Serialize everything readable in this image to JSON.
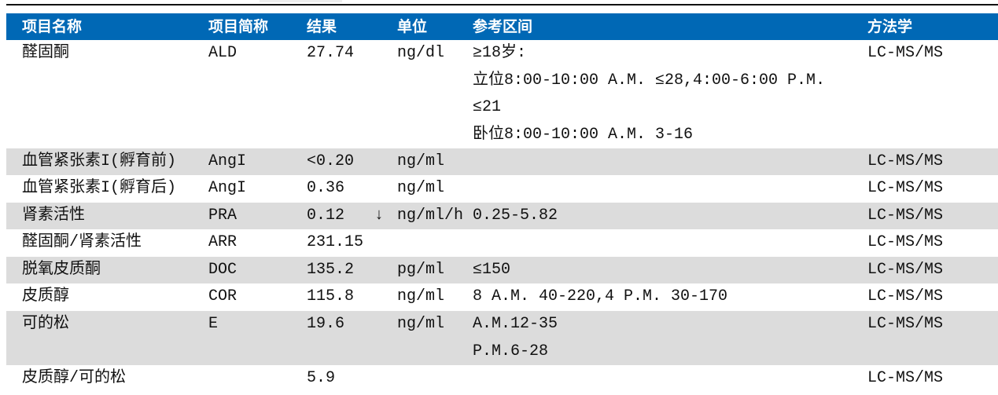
{
  "columns": [
    "项目名称",
    "项目简称",
    "结果",
    "单位",
    "参考区间",
    "方法学"
  ],
  "rows": [
    {
      "name": "醛固酮",
      "abbr": "ALD",
      "result": "27.74",
      "flag": "",
      "unit": "ng/dl",
      "ref": [
        "≥18岁:",
        "立位8:00-10:00 A.M. ≤28,4:00-6:00 P.M.",
        "≤21",
        "卧位8:00-10:00 A.M. 3-16"
      ],
      "method": "LC-MS/MS"
    },
    {
      "name": "血管紧张素I(孵育前)",
      "abbr": "AngI",
      "result": "<0.20",
      "flag": "",
      "unit": "ng/ml",
      "ref": [],
      "method": "LC-MS/MS"
    },
    {
      "name": "血管紧张素I(孵育后)",
      "abbr": "AngI",
      "result": "0.36",
      "flag": "",
      "unit": "ng/ml",
      "ref": [],
      "method": "LC-MS/MS"
    },
    {
      "name": "肾素活性",
      "abbr": "PRA",
      "result": "0.12",
      "flag": "↓",
      "unit": "ng/ml/h",
      "ref": [
        "0.25-5.82"
      ],
      "method": "LC-MS/MS"
    },
    {
      "name": "醛固酮/肾素活性",
      "abbr": "ARR",
      "result": "231.15",
      "flag": "",
      "unit": "",
      "ref": [],
      "method": "LC-MS/MS"
    },
    {
      "name": "脱氧皮质酮",
      "abbr": "DOC",
      "result": "135.2",
      "flag": "",
      "unit": "pg/ml",
      "ref": [
        "≤150"
      ],
      "method": "LC-MS/MS"
    },
    {
      "name": "皮质醇",
      "abbr": "COR",
      "result": "115.8",
      "flag": "",
      "unit": "ng/ml",
      "ref": [
        "8 A.M. 40-220,4 P.M. 30-170"
      ],
      "method": "LC-MS/MS"
    },
    {
      "name": "可的松",
      "abbr": "E",
      "result": "19.6",
      "flag": "",
      "unit": "ng/ml",
      "ref": [
        "A.M.12-35",
        "P.M.6-28"
      ],
      "method": "LC-MS/MS"
    },
    {
      "name": "皮质醇/可的松",
      "abbr": "",
      "result": "5.9",
      "flag": "",
      "unit": "",
      "ref": [],
      "method": "LC-MS/MS"
    }
  ],
  "colors": {
    "header_bg": "#0068b5",
    "row_alt_bg": "#dcdcdc"
  }
}
